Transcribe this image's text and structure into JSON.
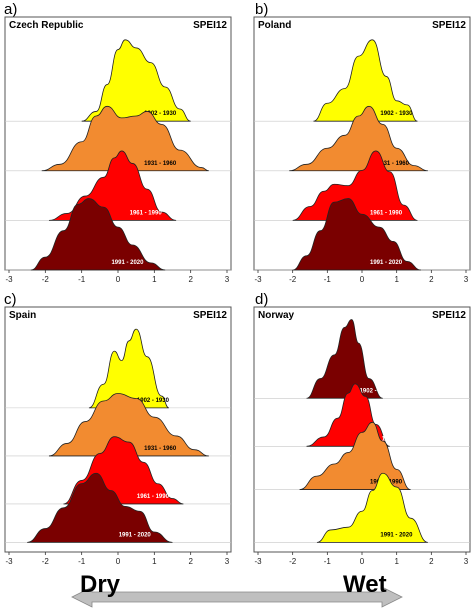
{
  "chart_data": [
    {
      "type": "area",
      "panel": "a)",
      "title": "Czech Republic",
      "index": "SPEI12",
      "xlim": [
        -3,
        3
      ],
      "xticks": [
        "-3",
        "-2",
        "-1",
        "0",
        "1",
        "2",
        "3"
      ],
      "series": [
        {
          "name": "1902 - 1930",
          "color": "#ffff00",
          "x": [
            -1.0,
            -0.6,
            -0.3,
            0.0,
            0.2,
            0.5,
            0.9,
            1.3,
            1.7,
            2.0
          ],
          "density": [
            0.0,
            0.12,
            0.45,
            0.88,
            1.0,
            0.9,
            0.72,
            0.42,
            0.15,
            0.0
          ]
        },
        {
          "name": "1931 - 1960",
          "color": "#f28b30",
          "x": [
            -2.1,
            -1.6,
            -1.0,
            -0.6,
            -0.3,
            0.1,
            0.5,
            0.8,
            1.2,
            1.7,
            2.3,
            2.5
          ],
          "density": [
            0.0,
            0.1,
            0.45,
            0.85,
            1.0,
            0.82,
            0.85,
            0.92,
            0.72,
            0.32,
            0.05,
            0.0
          ]
        },
        {
          "name": "1961 - 1990",
          "color": "#ff0000",
          "x": [
            -1.9,
            -1.4,
            -0.9,
            -0.4,
            -0.1,
            0.1,
            0.4,
            0.8,
            1.2,
            1.6
          ],
          "density": [
            0.0,
            0.1,
            0.35,
            0.62,
            0.9,
            1.0,
            0.82,
            0.45,
            0.12,
            0.0
          ]
        },
        {
          "name": "1991 - 2020",
          "color": "#7a0000",
          "x": [
            -2.4,
            -2.0,
            -1.5,
            -1.1,
            -0.8,
            -0.4,
            0.0,
            0.4,
            0.9,
            1.3
          ],
          "density": [
            0.0,
            0.18,
            0.55,
            0.92,
            1.0,
            0.88,
            0.6,
            0.35,
            0.1,
            0.0
          ]
        }
      ]
    },
    {
      "type": "area",
      "panel": "b)",
      "title": "Poland",
      "index": "SPEI12",
      "xlim": [
        -3,
        3
      ],
      "xticks": [
        "-3",
        "-2",
        "-1",
        "0",
        "1",
        "2",
        "3"
      ],
      "series": [
        {
          "name": "1902 - 1930",
          "color": "#ffff00",
          "x": [
            -1.4,
            -1.0,
            -0.5,
            -0.1,
            0.3,
            0.7,
            1.0,
            1.3,
            1.6
          ],
          "density": [
            0.0,
            0.22,
            0.4,
            0.8,
            1.0,
            0.55,
            0.25,
            0.2,
            0.0
          ]
        },
        {
          "name": "1931 - 1960",
          "color": "#f28b30",
          "x": [
            -2.1,
            -1.6,
            -1.0,
            -0.5,
            -0.1,
            0.2,
            0.6,
            1.0,
            1.5,
            1.9
          ],
          "density": [
            0.0,
            0.1,
            0.35,
            0.55,
            0.85,
            1.0,
            0.72,
            0.35,
            0.08,
            0.0
          ]
        },
        {
          "name": "1961 - 1990",
          "color": "#ff0000",
          "x": [
            -2.0,
            -1.5,
            -1.1,
            -0.8,
            -0.4,
            0.0,
            0.4,
            0.8,
            1.2,
            1.6
          ],
          "density": [
            0.0,
            0.2,
            0.42,
            0.52,
            0.5,
            0.72,
            1.0,
            0.7,
            0.22,
            0.0
          ]
        },
        {
          "name": "1991 - 2020",
          "color": "#7a0000",
          "x": [
            -2.0,
            -1.6,
            -1.2,
            -0.8,
            -0.4,
            0.0,
            0.5,
            0.9,
            1.3,
            1.7
          ],
          "density": [
            0.0,
            0.2,
            0.55,
            0.95,
            1.0,
            0.78,
            0.6,
            0.4,
            0.12,
            0.0
          ]
        }
      ]
    },
    {
      "type": "area",
      "panel": "c)",
      "title": "Spain",
      "index": "SPEI12",
      "xlim": [
        -3,
        3
      ],
      "xticks": [
        "-3",
        "-2",
        "-1",
        "0",
        "1",
        "2",
        "3"
      ],
      "series": [
        {
          "name": "1902 - 1930",
          "color": "#ffff00",
          "x": [
            -0.8,
            -0.4,
            -0.1,
            0.1,
            0.3,
            0.5,
            0.8,
            1.2,
            1.4
          ],
          "density": [
            0.0,
            0.3,
            0.72,
            0.6,
            0.85,
            1.0,
            0.65,
            0.15,
            0.0
          ]
        },
        {
          "name": "1931 - 1960",
          "color": "#f28b30",
          "x": [
            -1.9,
            -1.4,
            -0.9,
            -0.4,
            0.0,
            0.5,
            1.0,
            1.6,
            2.1,
            2.5
          ],
          "density": [
            0.0,
            0.2,
            0.55,
            0.88,
            1.0,
            0.92,
            0.62,
            0.32,
            0.1,
            0.0
          ]
        },
        {
          "name": "1961 - 1990",
          "color": "#ff0000",
          "x": [
            -1.5,
            -1.0,
            -0.5,
            -0.1,
            0.3,
            0.7,
            1.1,
            1.5,
            1.8
          ],
          "density": [
            0.0,
            0.35,
            0.75,
            1.0,
            0.92,
            0.62,
            0.3,
            0.08,
            0.0
          ]
        },
        {
          "name": "1991 - 2020",
          "color": "#7a0000",
          "x": [
            -2.5,
            -2.0,
            -1.5,
            -1.0,
            -0.6,
            -0.2,
            0.2,
            0.6,
            1.0,
            1.5
          ],
          "density": [
            0.0,
            0.2,
            0.5,
            0.85,
            1.0,
            0.75,
            0.52,
            0.45,
            0.15,
            0.0
          ]
        }
      ]
    },
    {
      "type": "area",
      "panel": "d)",
      "title": "Norway",
      "index": "SPEI12",
      "xlim": [
        -3,
        3
      ],
      "xticks": [
        "-3",
        "-2",
        "-1",
        "0",
        "1",
        "2",
        "3"
      ],
      "series": [
        {
          "name": "1902 - 1930",
          "color": "#7a0000",
          "x": [
            -1.6,
            -1.2,
            -0.8,
            -0.5,
            -0.3,
            -0.1,
            0.2,
            0.6
          ],
          "density": [
            0.0,
            0.25,
            0.55,
            0.9,
            1.0,
            0.7,
            0.25,
            0.0
          ]
        },
        {
          "name": "1931 - 1960",
          "color": "#ff0000",
          "x": [
            -1.6,
            -1.1,
            -0.7,
            -0.4,
            -0.2,
            0.1,
            0.4,
            0.8
          ],
          "density": [
            0.0,
            0.15,
            0.45,
            0.85,
            1.0,
            0.8,
            0.35,
            0.0
          ]
        },
        {
          "name": "1961 - 1990",
          "color": "#f28b30",
          "x": [
            -1.8,
            -1.3,
            -0.8,
            -0.4,
            0.0,
            0.3,
            0.6,
            1.0,
            1.4
          ],
          "density": [
            0.0,
            0.2,
            0.38,
            0.55,
            0.85,
            1.0,
            0.72,
            0.3,
            0.0
          ]
        },
        {
          "name": "1991 - 2020",
          "color": "#ffff00",
          "x": [
            -1.3,
            -0.9,
            -0.4,
            0.0,
            0.3,
            0.6,
            1.0,
            1.4,
            1.9
          ],
          "density": [
            0.0,
            0.18,
            0.22,
            0.45,
            0.75,
            1.0,
            0.8,
            0.35,
            0.0
          ]
        }
      ]
    }
  ],
  "annotation": {
    "left": "Dry",
    "right": "Wet",
    "arrow_color": "#bfbfbf"
  }
}
